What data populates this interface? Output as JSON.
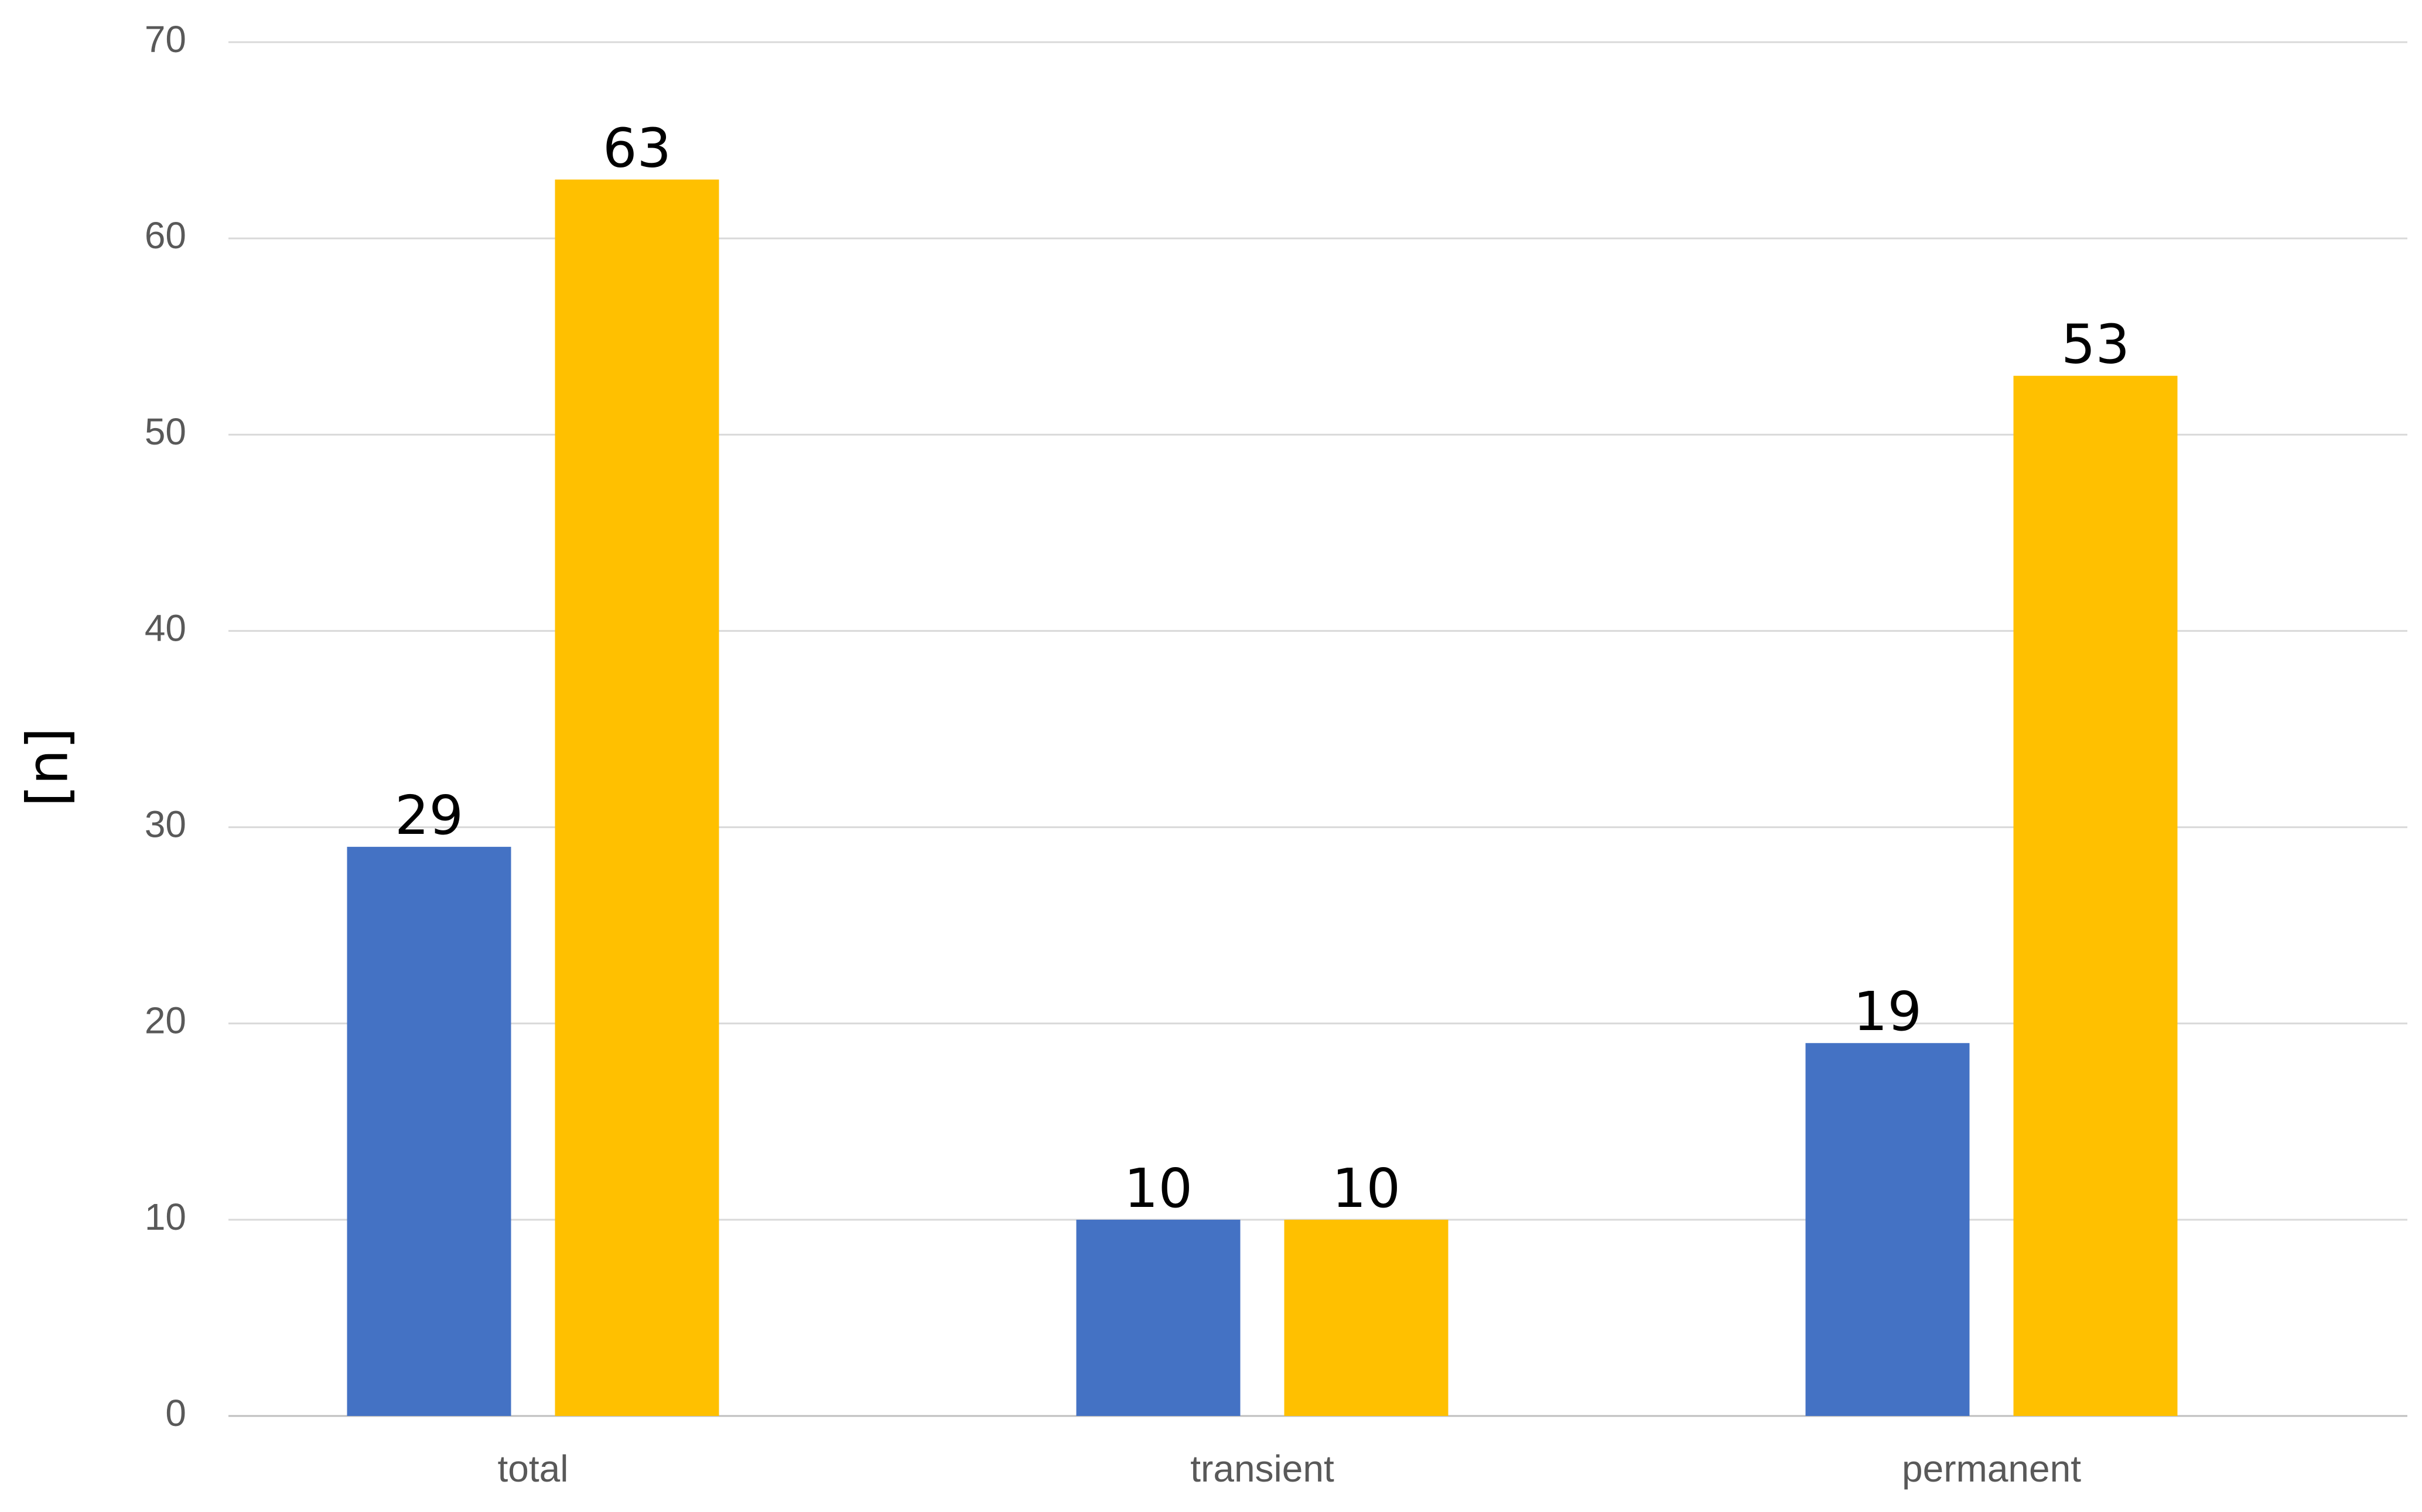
{
  "chart_data": {
    "type": "bar",
    "title": "",
    "xlabel": "",
    "ylabel": "[n]",
    "ylim": [
      0,
      70
    ],
    "yticks": [
      0,
      10,
      20,
      30,
      40,
      50,
      60,
      70
    ],
    "grid": true,
    "legend": "none",
    "categories": [
      "total",
      "transient",
      "permanent"
    ],
    "series": [
      {
        "values": [
          29,
          10,
          19
        ],
        "color": "#4472c4"
      },
      {
        "values": [
          63,
          10,
          53
        ],
        "color": "#ffc000"
      }
    ]
  }
}
